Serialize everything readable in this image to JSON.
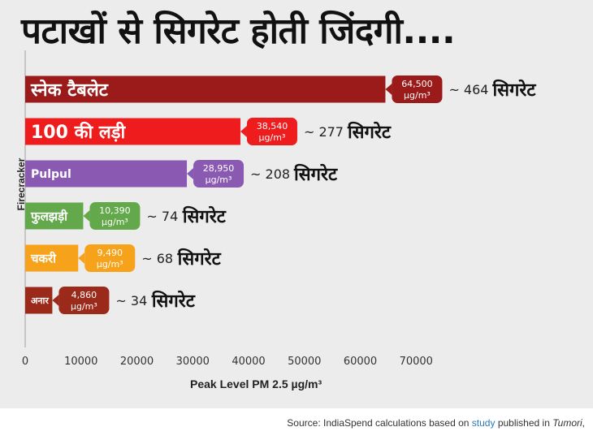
{
  "title": "पटाखों से सिगरेट होती जिंदगी....",
  "source": {
    "prefix": "Source: IndiaSpend calculations based on ",
    "link": "study",
    "middle": " published in ",
    "journal": "Tumori",
    "suffix": ","
  },
  "chart_data": {
    "type": "bar",
    "orientation": "horizontal",
    "title": "पटाखों से सिगरेट होती जिंदगी....",
    "xlabel": "Peak Level PM 2.5 µg/m³",
    "ylabel": "Firecracker",
    "xlim": [
      0,
      70000
    ],
    "xticks": [
      0,
      10000,
      20000,
      30000,
      40000,
      50000,
      60000,
      70000
    ],
    "grid": false,
    "unit": "µg/m³",
    "categories": [
      "स्नेक टैबलेट",
      "100 की लड़ी",
      "Pulpul",
      "फुलझड़ी",
      "चकरी",
      "अनार"
    ],
    "values": [
      64500,
      38540,
      28950,
      10390,
      9490,
      4860
    ],
    "value_labels": [
      "64,500",
      "38,540",
      "28,950",
      "10,390",
      "9,490",
      "4,860"
    ],
    "cigarette_labels": [
      "~ 464",
      "~ 277",
      "~ 208",
      "~ 74",
      "~ 68",
      "~ 34"
    ],
    "cigarette_word": "सिगरेट",
    "colors": [
      "#9b1b1b",
      "#ee1c1c",
      "#8a5ab2",
      "#63a84a",
      "#f7a21b",
      "#9b2a1b"
    ]
  }
}
